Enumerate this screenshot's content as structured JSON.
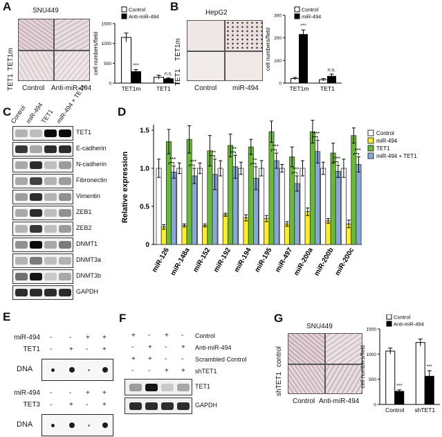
{
  "panels": {
    "A": {
      "letter": "A",
      "title": "SNU449",
      "row_labels": [
        "TET1m",
        "TET1"
      ],
      "col_labels": [
        "Control",
        "Anti-miR-494"
      ],
      "legend": [
        "Control",
        "Anti-miR-494"
      ],
      "ylabel": "cell numbers/field",
      "sig": [
        "***",
        "n.s."
      ]
    },
    "B": {
      "letter": "B",
      "title": "HepG2",
      "row_labels": [
        "TET1m",
        "TET1"
      ],
      "col_labels": [
        "Control",
        "miR-494"
      ],
      "legend": [
        "Control",
        "miR-494"
      ],
      "ylabel": "cell numbers/field",
      "sig": [
        "***",
        "n.s."
      ]
    },
    "C": {
      "letter": "C",
      "lanes": [
        "Control",
        "miR-494",
        "TET1",
        "miR-494 + TET1"
      ],
      "proteins": [
        "TET1",
        "E-cadherin",
        "N-cadherin",
        "Fibronectin",
        "Vimentin",
        "ZEB1",
        "ZEB2",
        "DNMT1",
        "DNMT3a",
        "DNMT3b",
        "GAPDH"
      ]
    },
    "D": {
      "letter": "D",
      "ylabel": "Relative expression",
      "legend": [
        "Control",
        "miR-494",
        "TET1",
        "miR-494 + TET1"
      ],
      "sig": [
        "***",
        "***",
        "**",
        "**",
        "**",
        "***",
        "***",
        "***",
        "***",
        "***"
      ]
    },
    "E": {
      "letter": "E",
      "rows1": [
        {
          "label": "miR-494",
          "signs": [
            "-",
            "-",
            "+",
            "+"
          ]
        },
        {
          "label": "TET1",
          "signs": [
            "-",
            "+",
            "-",
            "+"
          ]
        }
      ],
      "rows2": [
        {
          "label": "miR-494",
          "signs": [
            "-",
            "-",
            "+",
            "+"
          ]
        },
        {
          "label": "TET3",
          "signs": [
            "-",
            "+",
            "-",
            "+"
          ]
        }
      ],
      "dna_label": "DNA"
    },
    "F": {
      "letter": "F",
      "rows": [
        {
          "label": "Control",
          "signs": [
            "+",
            "-",
            "+",
            "-"
          ]
        },
        {
          "label": "Anti-miR-494",
          "signs": [
            "-",
            "+",
            "-",
            "+"
          ]
        },
        {
          "label": "Scrambled Control",
          "signs": [
            "+",
            "+",
            "-",
            "-"
          ]
        },
        {
          "label": "shTET1",
          "signs": [
            "-",
            "-",
            "+",
            "+"
          ]
        }
      ],
      "blots": [
        "TET1",
        "GAPDH"
      ]
    },
    "G": {
      "letter": "G",
      "title": "SNU449",
      "row_labels": [
        "control",
        "shTET1"
      ],
      "col_labels": [
        "Control",
        "Anti-miR-494"
      ],
      "legend": [
        "Control",
        "Anti-miR-494"
      ],
      "ylabel": "cell numbers/field",
      "sig": [
        "***",
        "***"
      ]
    }
  },
  "chart_data": [
    {
      "type": "bar",
      "panel": "A",
      "categories": [
        "TET1m",
        "TET1"
      ],
      "series": [
        {
          "name": "Control",
          "values": [
            1150,
            150
          ],
          "errors": [
            110,
            50
          ]
        },
        {
          "name": "Anti-miR-494",
          "values": [
            290,
            110
          ],
          "errors": [
            50,
            25
          ]
        }
      ],
      "ylim": [
        0,
        1500
      ],
      "yticks": [
        0,
        500,
        1000,
        1500
      ],
      "ylabel": "cell numbers/field",
      "colors": [
        "#ffffff",
        "#000000"
      ]
    },
    {
      "type": "bar",
      "panel": "B",
      "categories": [
        "TET1m",
        "TET1"
      ],
      "series": [
        {
          "name": "Control",
          "values": [
            20,
            15
          ],
          "errors": [
            5,
            5
          ]
        },
        {
          "name": "miR-494",
          "values": [
            215,
            30
          ],
          "errors": [
            20,
            10
          ]
        }
      ],
      "ylim": [
        0,
        300
      ],
      "yticks": [
        0,
        100,
        200,
        300
      ],
      "ylabel": "cell numbers/field",
      "colors": [
        "#ffffff",
        "#000000"
      ]
    },
    {
      "type": "bar",
      "panel": "D",
      "categories": [
        "miR-126",
        "miR-148a",
        "miR-152",
        "miR-192",
        "miR-194",
        "miR-195",
        "miR-497",
        "miR-200a",
        "miR-200b",
        "miR-200c"
      ],
      "series": [
        {
          "name": "Control",
          "values": [
            1.0,
            1.0,
            1.0,
            1.0,
            1.0,
            1.0,
            1.0,
            1.0,
            1.0,
            1.0
          ],
          "errors": [
            0.12,
            0.07,
            0.07,
            0.1,
            0.08,
            0.1,
            0.05,
            0.1,
            0.08,
            0.12
          ]
        },
        {
          "name": "miR-494",
          "values": [
            0.23,
            0.25,
            0.25,
            0.39,
            0.35,
            0.34,
            0.27,
            0.43,
            0.31,
            0.27
          ],
          "errors": [
            0.03,
            0.02,
            0.02,
            0.02,
            0.04,
            0.04,
            0.03,
            0.05,
            0.03,
            0.05
          ]
        },
        {
          "name": "TET1",
          "values": [
            1.35,
            1.38,
            1.23,
            1.3,
            1.28,
            1.48,
            1.15,
            1.48,
            1.2,
            1.43
          ],
          "errors": [
            0.16,
            0.18,
            0.2,
            0.15,
            0.1,
            0.14,
            0.13,
            0.15,
            0.13,
            0.1
          ]
        },
        {
          "name": "miR-494 + TET1",
          "values": [
            0.95,
            0.9,
            0.92,
            1.02,
            0.87,
            1.1,
            0.8,
            1.22,
            0.96,
            1.05
          ],
          "errors": [
            0.08,
            0.1,
            0.2,
            0.15,
            0.15,
            0.1,
            0.1,
            0.15,
            0.08,
            0.1
          ]
        }
      ],
      "ylim": [
        0,
        1.5
      ],
      "yticks": [
        0,
        0.5,
        1.0,
        1.5
      ],
      "ylabel": "Relative expression",
      "colors": [
        "#ffffff",
        "#ffee22",
        "#66bb33",
        "#88a8d8"
      ]
    },
    {
      "type": "bar",
      "panel": "G",
      "categories": [
        "Control",
        "shTET1"
      ],
      "series": [
        {
          "name": "Control",
          "values": [
            1060,
            1230
          ],
          "errors": [
            60,
            70
          ]
        },
        {
          "name": "Anti-miR-494",
          "values": [
            260,
            560
          ],
          "errors": [
            30,
            110
          ]
        }
      ],
      "ylim": [
        0,
        1500
      ],
      "yticks": [
        0,
        500,
        1000,
        1500
      ],
      "ylabel": "cell numbers/field",
      "colors": [
        "#ffffff",
        "#000000"
      ]
    }
  ]
}
